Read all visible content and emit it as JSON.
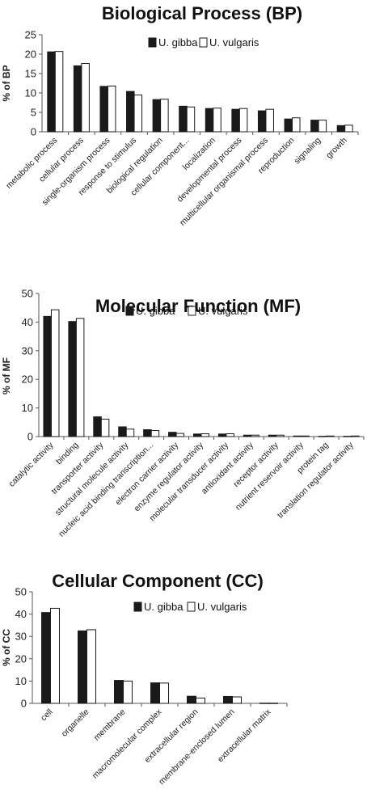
{
  "chart_data": [
    {
      "type": "bar",
      "title": "Biological Process (BP)",
      "ylabel": "% of BP",
      "xlabel": "",
      "ylim": [
        0,
        25
      ],
      "yticks": [
        0,
        5,
        10,
        15,
        20,
        25
      ],
      "grid": false,
      "legend_position": "top-right",
      "categories": [
        "metabolic process",
        "cellular process",
        "single-organism process",
        "response to stimulus",
        "biological regulation",
        "cellular component...",
        "localization",
        "developmental process",
        "multicellular organismal process",
        "reproduction",
        "signaling",
        "growth"
      ],
      "series": [
        {
          "name": "U. gibba",
          "color": "#1a1a1a",
          "values": [
            20.6,
            17.0,
            11.7,
            10.4,
            8.3,
            6.6,
            6.0,
            5.8,
            5.4,
            3.3,
            3.0,
            1.6
          ]
        },
        {
          "name": "U. vulgaris",
          "color": "#ffffff",
          "values": [
            20.7,
            17.6,
            11.8,
            9.5,
            8.4,
            6.4,
            6.1,
            6.0,
            5.8,
            3.6,
            3.0,
            1.7
          ]
        }
      ]
    },
    {
      "type": "bar",
      "title": "Molecular Function (MF)",
      "ylabel": "% of MF",
      "xlabel": "",
      "ylim": [
        0,
        50
      ],
      "yticks": [
        0,
        10,
        20,
        30,
        40,
        50
      ],
      "grid": false,
      "legend_position": "top-right",
      "categories": [
        "catalytic activity",
        "binding",
        "transporter activity",
        "structural molecule activity",
        "nucleic acid binding transcription...",
        "electron carrier activity",
        "enzyme regulator activity",
        "molecular transducer activity",
        "antioxidant activity",
        "receptor activity",
        "nutrient reservoir activity",
        "protein tag",
        "translation regulator activity"
      ],
      "series": [
        {
          "name": "U. gibba",
          "color": "#1a1a1a",
          "values": [
            42.0,
            40.2,
            6.9,
            3.4,
            2.4,
            1.5,
            0.9,
            0.9,
            0.5,
            0.5,
            0.2,
            0.1,
            0.1
          ]
        },
        {
          "name": "U. vulgaris",
          "color": "#ffffff",
          "values": [
            44.3,
            41.3,
            6.1,
            2.6,
            2.1,
            1.1,
            1.0,
            1.0,
            0.5,
            0.5,
            0.2,
            0.2,
            0.2
          ]
        }
      ]
    },
    {
      "type": "bar",
      "title": "Cellular Component (CC)",
      "ylabel": "% of CC",
      "xlabel": "",
      "ylim": [
        0,
        50
      ],
      "yticks": [
        0,
        10,
        20,
        30,
        40,
        50
      ],
      "grid": false,
      "legend_position": "top-right",
      "categories": [
        "cell",
        "organelle",
        "membrane",
        "macromolecular complex",
        "extracellular region",
        "membrane-enclosed lumen",
        "extracellular matrix"
      ],
      "series": [
        {
          "name": "U. gibba",
          "color": "#1a1a1a",
          "values": [
            40.7,
            32.5,
            10.3,
            9.2,
            3.2,
            3.1,
            0.1
          ]
        },
        {
          "name": "U. vulgaris",
          "color": "#ffffff",
          "values": [
            42.6,
            33.0,
            10.0,
            9.1,
            2.4,
            2.9,
            0.1
          ]
        }
      ]
    }
  ]
}
